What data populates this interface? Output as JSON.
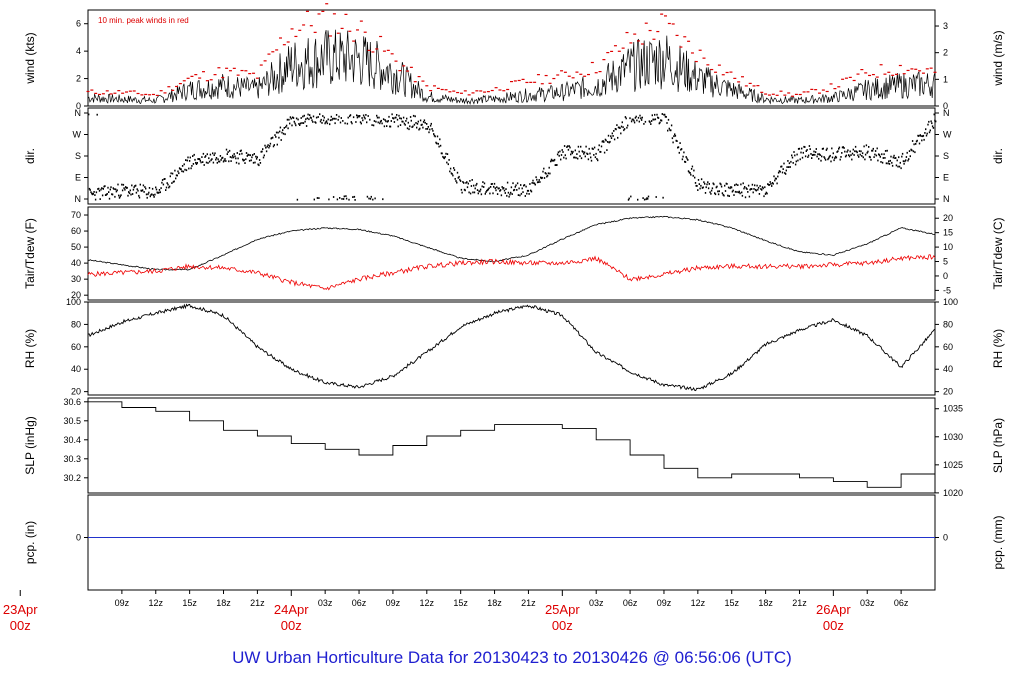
{
  "title": "UW Urban Horticulture Data for 20130423  to  20130426 @ 06:56:06  (UTC)",
  "colors": {
    "frame": "#000000",
    "data": "#000000",
    "peak": "#dd0000",
    "dewpoint": "#ee0000",
    "precip": "#2233cc",
    "date_label": "#dd0000",
    "title": "#2020d0"
  },
  "chart_data": [
    {
      "type": "line",
      "panel": "wind",
      "ylabel_left": "wind (kts)",
      "ylabel_right": "wind (m/s)",
      "annotation": "10 min. peak winds in red",
      "ylim": [
        0,
        7
      ],
      "left_ticks": [
        "0",
        "2",
        "4",
        "6"
      ],
      "right_ticks": [
        "0",
        "1",
        "2",
        "3"
      ],
      "x_hours": [
        0,
        3,
        6,
        9,
        12,
        15,
        18,
        21,
        24,
        27,
        30,
        33,
        36,
        39,
        42,
        45,
        48,
        51,
        54,
        57,
        60,
        63,
        66,
        69,
        72,
        75
      ],
      "series": [
        {
          "role": "mean-wind",
          "values": [
            0.6,
            0.5,
            0.4,
            1.2,
            1.5,
            1.2,
            3.0,
            3.5,
            3.4,
            2.5,
            0.7,
            0.4,
            0.5,
            0.8,
            1.0,
            1.5,
            2.8,
            3.5,
            2.0,
            1.2,
            0.5,
            0.4,
            0.6,
            1.2,
            1.5,
            1.6
          ]
        },
        {
          "role": "peak-wind",
          "values": [
            1.0,
            1.0,
            0.8,
            2.0,
            2.5,
            2.2,
            5.6,
            6.4,
            5.6,
            3.5,
            1.4,
            0.9,
            1.2,
            1.8,
            2.2,
            2.8,
            4.8,
            5.9,
            3.8,
            2.2,
            1.0,
            0.8,
            1.4,
            2.4,
            2.8,
            2.5
          ]
        }
      ]
    },
    {
      "type": "scatter",
      "panel": "direction",
      "ylabel_left": "dir.",
      "ylabel_right": "dir.",
      "left_ticks": [
        "N",
        "W",
        "S",
        "E",
        "N"
      ],
      "right_ticks": [
        "N",
        "W",
        "S",
        "E",
        "N"
      ],
      "x_hours": [
        0,
        3,
        6,
        9,
        12,
        15,
        18,
        21,
        24,
        27,
        30,
        33,
        36,
        39,
        42,
        45,
        48,
        51,
        54,
        57,
        60,
        63,
        66,
        69,
        72,
        75
      ],
      "series": [
        {
          "role": "wind-direction-deg",
          "values": [
            20,
            40,
            30,
            160,
            190,
            170,
            330,
            345,
            350,
            330,
            320,
            60,
            45,
            40,
            200,
            190,
            350,
            340,
            60,
            40,
            40,
            200,
            190,
            200,
            160,
            340
          ]
        }
      ]
    },
    {
      "type": "line",
      "panel": "temperature",
      "ylabel_left": "Tair/Tdew (F)",
      "ylabel_right": "Tair/Tdew (C)",
      "ylim": [
        17,
        75
      ],
      "left_ticks": [
        "20",
        "30",
        "40",
        "50",
        "60",
        "70"
      ],
      "right_ticks": [
        "-5",
        "0",
        "5",
        "10",
        "15",
        "20"
      ],
      "x_hours": [
        0,
        3,
        6,
        9,
        12,
        15,
        18,
        21,
        24,
        27,
        30,
        33,
        36,
        39,
        42,
        45,
        48,
        51,
        54,
        57,
        60,
        63,
        66,
        69,
        72,
        75
      ],
      "series": [
        {
          "role": "air-temperature",
          "values": [
            42,
            39,
            36,
            36,
            45,
            55,
            60,
            62,
            61,
            57,
            50,
            43,
            41,
            45,
            55,
            64,
            68,
            69,
            67,
            62,
            54,
            47,
            45,
            52,
            62,
            58
          ]
        },
        {
          "role": "dew-point",
          "values": [
            33,
            34,
            35,
            38,
            37,
            34,
            28,
            24,
            30,
            34,
            38,
            40,
            41,
            40,
            40,
            43,
            30,
            33,
            37,
            38,
            38,
            38,
            39,
            40,
            43,
            44
          ]
        }
      ]
    },
    {
      "type": "line",
      "panel": "humidity",
      "ylabel_left": "RH (%)",
      "ylabel_right": "RH (%)",
      "ylim": [
        17,
        100
      ],
      "left_ticks": [
        "20",
        "40",
        "60",
        "80",
        "100"
      ],
      "right_ticks": [
        "20",
        "40",
        "60",
        "80",
        "100"
      ],
      "x_hours": [
        0,
        3,
        6,
        9,
        12,
        15,
        18,
        21,
        24,
        27,
        30,
        33,
        36,
        39,
        42,
        45,
        48,
        51,
        54,
        57,
        60,
        63,
        66,
        69,
        72,
        75
      ],
      "series": [
        {
          "role": "relative-humidity",
          "values": [
            70,
            82,
            90,
            97,
            88,
            60,
            40,
            28,
            24,
            34,
            55,
            78,
            90,
            97,
            88,
            55,
            38,
            26,
            22,
            36,
            62,
            75,
            84,
            70,
            42,
            75
          ]
        }
      ]
    },
    {
      "type": "line",
      "panel": "pressure",
      "ylabel_left": "SLP (inHg)",
      "ylabel_right": "SLP (hPa)",
      "ylim": [
        30.12,
        30.62
      ],
      "left_ticks": [
        "30.2",
        "30.3",
        "30.4",
        "30.5",
        "30.6"
      ],
      "right_ticks": [
        "1020",
        "1025",
        "1030",
        "1035"
      ],
      "x_hours": [
        0,
        3,
        6,
        9,
        12,
        15,
        18,
        21,
        24,
        27,
        30,
        33,
        36,
        39,
        42,
        45,
        48,
        51,
        54,
        57,
        60,
        63,
        66,
        69,
        72,
        75
      ],
      "series": [
        {
          "role": "sea-level-pressure",
          "values": [
            30.6,
            30.57,
            30.55,
            30.5,
            30.45,
            30.42,
            30.38,
            30.35,
            30.32,
            30.37,
            30.42,
            30.45,
            30.48,
            30.48,
            30.46,
            30.4,
            30.32,
            30.25,
            30.2,
            30.22,
            30.22,
            30.2,
            30.18,
            30.15,
            30.22,
            30.26
          ]
        }
      ]
    },
    {
      "type": "line",
      "panel": "precipitation",
      "ylabel_left": "pcp. (in)",
      "ylabel_right": "pcp. (mm)",
      "left_ticks": [
        "0"
      ],
      "right_ticks": [
        "0"
      ],
      "x_hours": [
        0,
        75
      ],
      "series": [
        {
          "role": "precipitation",
          "values": [
            0,
            0
          ]
        }
      ]
    }
  ],
  "x_axis": {
    "hour_ticks": [
      "09z",
      "12z",
      "15z",
      "18z",
      "21z",
      "03z",
      "06z",
      "09z",
      "12z",
      "15z",
      "18z",
      "21z",
      "03z",
      "06z",
      "09z",
      "12z",
      "15z",
      "18z",
      "21z",
      "03z",
      "06z"
    ],
    "date_labels": [
      {
        "date": "23Apr",
        "time": "00z"
      },
      {
        "date": "24Apr",
        "time": "00z"
      },
      {
        "date": "25Apr",
        "time": "00z"
      },
      {
        "date": "26Apr",
        "time": "00z"
      }
    ]
  }
}
